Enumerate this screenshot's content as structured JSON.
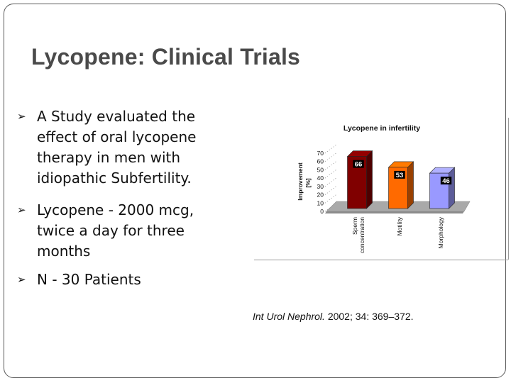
{
  "slide": {
    "title": "Lycopene: Clinical Trials",
    "bullets": [
      {
        "marker": "➢",
        "text": "A Study evaluated the\neffect of oral lycopene\ntherapy in men   with\nidiopathic Subfertility."
      },
      {
        "marker": "➢",
        "text": " Lycopene - 2000 mcg,\ntwice a day for three\nmonths"
      },
      {
        "marker": "➢",
        "text": "N - 30 Patients"
      }
    ],
    "citation": {
      "journal": "Int Urol Nephrol.",
      "details": " 2002; 34: 369–372."
    }
  },
  "chart_data": {
    "type": "bar",
    "title": "Lycopene in infertility",
    "ylabel_line1": "Improvement",
    "ylabel_line2": "[%]",
    "categories": [
      "Sperm\nconcentration",
      "Motility",
      "Morphology"
    ],
    "values": [
      66,
      53,
      46
    ],
    "colors": [
      "#800000",
      "#ff6a00",
      "#9999ff"
    ],
    "yticks": [
      0,
      10,
      20,
      30,
      40,
      50,
      60,
      70
    ],
    "ylim": [
      0,
      70
    ],
    "grid": true,
    "legend": "none",
    "three_d": true
  }
}
